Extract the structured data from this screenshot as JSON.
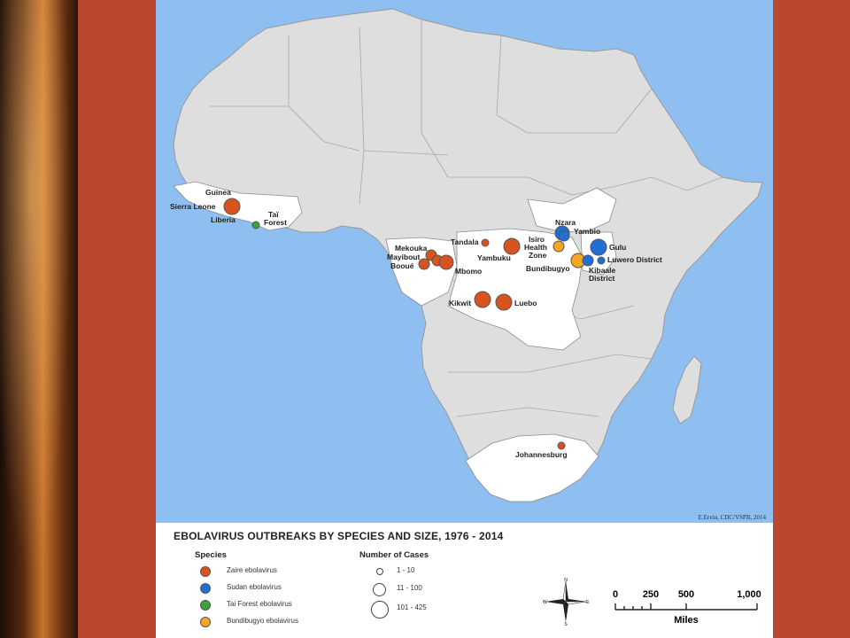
{
  "slide": {
    "background_color": "#b9482e"
  },
  "map": {
    "credit": "E.Ervin, CDC/VSPB, 2014",
    "places": [
      {
        "id": "guinea",
        "label": "Guinea"
      },
      {
        "id": "sierra-leone",
        "label": "Sierra Leone"
      },
      {
        "id": "liberia",
        "label": "Liberia"
      },
      {
        "id": "tai-forest",
        "label": "Taï"
      },
      {
        "id": "tai-forest-2",
        "label": "Forest"
      },
      {
        "id": "mekouka",
        "label": "Mekouka"
      },
      {
        "id": "mayibout",
        "label": "Mayibout"
      },
      {
        "id": "booue",
        "label": "Booué"
      },
      {
        "id": "mbomo",
        "label": "Mbomo"
      },
      {
        "id": "tandala",
        "label": "Tandala"
      },
      {
        "id": "yambuku",
        "label": "Yambuku"
      },
      {
        "id": "kikwit",
        "label": "Kikwit"
      },
      {
        "id": "luebo",
        "label": "Luebo"
      },
      {
        "id": "nzara",
        "label": "Nzara"
      },
      {
        "id": "yambio",
        "label": "Yambio"
      },
      {
        "id": "isiro",
        "label": "Isiro"
      },
      {
        "id": "isiro-2",
        "label": "Health"
      },
      {
        "id": "isiro-3",
        "label": "Zone"
      },
      {
        "id": "gulu",
        "label": "Gulu"
      },
      {
        "id": "bundibugyo",
        "label": "Bundibugyo"
      },
      {
        "id": "luwero",
        "label": "Luwero District"
      },
      {
        "id": "kibaale",
        "label": "Kibaale"
      },
      {
        "id": "kibaale-2",
        "label": "District"
      },
      {
        "id": "johannesburg",
        "label": "Johannesburg"
      }
    ],
    "outbreaks": [
      {
        "place": "Guinea / Sierra Leone / Liberia",
        "species": "zaire",
        "size": "large"
      },
      {
        "place": "Taï Forest",
        "species": "tai",
        "size": "small"
      },
      {
        "place": "Mekouka",
        "species": "zaire",
        "size": "medium"
      },
      {
        "place": "Mayibout",
        "species": "zaire",
        "size": "medium"
      },
      {
        "place": "Booué",
        "species": "zaire",
        "size": "medium"
      },
      {
        "place": "Mbomo",
        "species": "zaire",
        "size": "large"
      },
      {
        "place": "Tandala",
        "species": "zaire",
        "size": "small"
      },
      {
        "place": "Yambuku",
        "species": "zaire",
        "size": "large"
      },
      {
        "place": "Kikwit",
        "species": "zaire",
        "size": "large"
      },
      {
        "place": "Luebo",
        "species": "zaire",
        "size": "large"
      },
      {
        "place": "Nzara",
        "species": "sudan",
        "size": "large"
      },
      {
        "place": "Yambio",
        "species": "sudan",
        "size": "medium"
      },
      {
        "place": "Isiro Health Zone",
        "species": "bundibugyo",
        "size": "medium"
      },
      {
        "place": "Gulu",
        "species": "sudan",
        "size": "large"
      },
      {
        "place": "Bundibugyo",
        "species": "bundibugyo",
        "size": "large"
      },
      {
        "place": "Kibaale District",
        "species": "sudan",
        "size": "medium"
      },
      {
        "place": "Luwero District",
        "species": "sudan",
        "size": "small"
      },
      {
        "place": "Johannesburg",
        "species": "zaire",
        "size": "small"
      }
    ]
  },
  "legend": {
    "title": "EBOLAVIRUS OUTBREAKS BY SPECIES AND SIZE, 1976 - 2014",
    "species_heading": "Species",
    "species": [
      {
        "label": "Zaire ebolavirus",
        "color": "#d9531e"
      },
      {
        "label": "Sudan ebolavirus",
        "color": "#1f6fd6"
      },
      {
        "label": "Tai Forest ebolavirus",
        "color": "#3aa33a"
      },
      {
        "label": "Bundibugyo ebolavirus",
        "color": "#f5a623"
      }
    ],
    "cases_heading": "Number of Cases",
    "cases": [
      {
        "label": "1 - 10"
      },
      {
        "label": "11 - 100"
      },
      {
        "label": "101 - 425"
      }
    ],
    "compass": {
      "n": "N",
      "s": "S",
      "e": "E",
      "w": "W"
    },
    "scale": {
      "ticks": [
        "0",
        "250",
        "500",
        "1,000"
      ],
      "unit": "Miles"
    }
  }
}
